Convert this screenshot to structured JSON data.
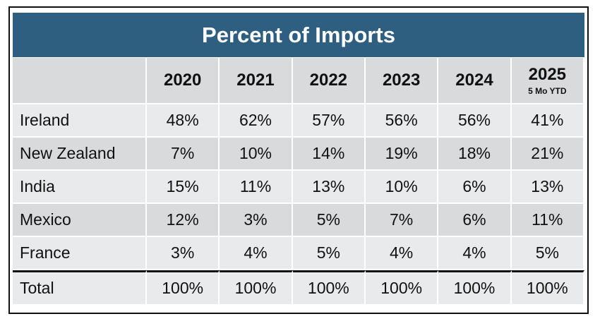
{
  "chart_data": {
    "type": "table",
    "title": "Percent of Imports",
    "columns": [
      {
        "year": "2020",
        "sub": ""
      },
      {
        "year": "2021",
        "sub": ""
      },
      {
        "year": "2022",
        "sub": ""
      },
      {
        "year": "2023",
        "sub": ""
      },
      {
        "year": "2024",
        "sub": ""
      },
      {
        "year": "2025",
        "sub": "5 Mo YTD"
      }
    ],
    "rows": [
      {
        "country": "Ireland",
        "values": [
          "48%",
          "62%",
          "57%",
          "56%",
          "56%",
          "41%"
        ]
      },
      {
        "country": "New Zealand",
        "values": [
          "7%",
          "10%",
          "14%",
          "19%",
          "18%",
          "21%"
        ]
      },
      {
        "country": "India",
        "values": [
          "15%",
          "11%",
          "13%",
          "10%",
          "6%",
          "13%"
        ]
      },
      {
        "country": "Mexico",
        "values": [
          "12%",
          "3%",
          "5%",
          "7%",
          "6%",
          "11%"
        ]
      },
      {
        "country": "France",
        "values": [
          "3%",
          "4%",
          "5%",
          "4%",
          "4%",
          "5%"
        ]
      },
      {
        "country": "Total",
        "values": [
          "100%",
          "100%",
          "100%",
          "100%",
          "100%",
          "100%"
        ]
      }
    ]
  }
}
